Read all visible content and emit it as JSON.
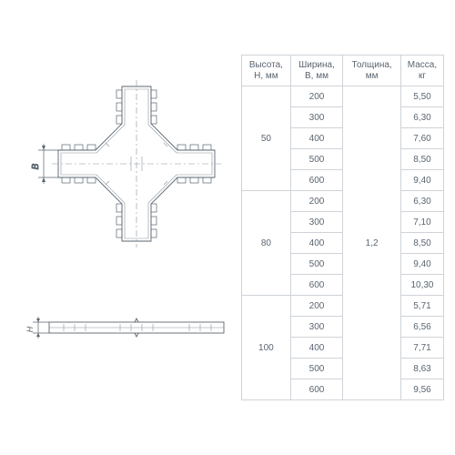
{
  "colors": {
    "stroke": "#5a6570",
    "stroke_light": "#8b939c",
    "bg": "#ffffff",
    "grid": "#cfd3d8",
    "text": "#5a6570"
  },
  "fontsize": {
    "header": 10,
    "cell": 10
  },
  "table": {
    "headers": [
      "Высота,\nH, мм",
      "Ширина,\nB, мм",
      "Толщина,\nмм",
      "Масса,\nкг"
    ],
    "col_widths_pct": [
      25,
      25,
      25,
      25
    ],
    "groups": [
      {
        "height": "50",
        "rows": [
          {
            "width": "200",
            "mass": "5,50"
          },
          {
            "width": "300",
            "mass": "6,30"
          },
          {
            "width": "400",
            "mass": "7,60"
          },
          {
            "width": "500",
            "mass": "8,50"
          },
          {
            "width": "600",
            "mass": "9,40"
          }
        ]
      },
      {
        "height": "80",
        "rows": [
          {
            "width": "200",
            "mass": "6,30"
          },
          {
            "width": "300",
            "mass": "7,10"
          },
          {
            "width": "400",
            "mass": "8,50"
          },
          {
            "width": "500",
            "mass": "9,40"
          },
          {
            "width": "600",
            "mass": "10,30"
          }
        ]
      },
      {
        "height": "100",
        "rows": [
          {
            "width": "200",
            "mass": "5,71"
          },
          {
            "width": "300",
            "mass": "6,56"
          },
          {
            "width": "400",
            "mass": "7,71"
          },
          {
            "width": "500",
            "mass": "8,63"
          },
          {
            "width": "600",
            "mass": "9,56"
          }
        ]
      }
    ],
    "thickness": "1,2",
    "thickness_rowspan": 15
  },
  "diagram": {
    "type": "engineering-drawing",
    "main_viewbox": [
      0,
      0,
      245,
      260
    ],
    "side_viewbox": [
      0,
      0,
      245,
      40
    ],
    "line_width": 0.9,
    "dim_labels": {
      "B": "B",
      "H": "H"
    }
  }
}
